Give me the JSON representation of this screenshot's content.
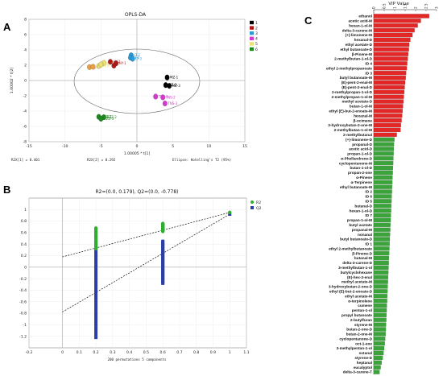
{
  "panels": {
    "A": "A",
    "B": "B",
    "C": "C"
  },
  "chart_data": [
    {
      "type": "scatter",
      "title": "OPLS-DA",
      "xlabel": "1.00005 * t[1]",
      "ylabel": "1.00002 * t[2]",
      "xlim": [
        -15,
        15
      ],
      "ylim": [
        -8,
        8
      ],
      "xticks": [
        "-15",
        "-10",
        "-5",
        "0",
        "5",
        "10",
        "15"
      ],
      "yticks": [
        "8",
        "6",
        "4",
        "2",
        "0",
        "-2",
        "-4",
        "-6",
        "-8"
      ],
      "footer": {
        "left": "R2X[1] = 0.401",
        "middle": "R2X[2] = 0.292",
        "right": "Ellipse: Hotelling's T2 (95%)"
      },
      "legend": [
        {
          "name": "1",
          "color": "#000000"
        },
        {
          "name": "2",
          "color": "#b01818"
        },
        {
          "name": "3",
          "color": "#2a9ad8"
        },
        {
          "name": "4",
          "color": "#d43ad0"
        },
        {
          "name": "5",
          "color": "#e8e070"
        },
        {
          "name": "6",
          "color": "#1d8a1d"
        }
      ],
      "groups": [
        {
          "color": "#e8e070",
          "points": [
            {
              "x": -5.3,
              "y": 1.9,
              "label": "HY-3"
            },
            {
              "x": -4.6,
              "y": 2.3,
              "label": "HY-1"
            },
            {
              "x": -5.0,
              "y": 2.1,
              "label": "HY-3"
            }
          ]
        },
        {
          "color": "#e8a040",
          "points": [
            {
              "x": -6.6,
              "y": 1.75,
              "label": "HJ-1"
            },
            {
              "x": -6.1,
              "y": 1.8,
              "label": ""
            }
          ]
        },
        {
          "color": "#b01818",
          "points": [
            {
              "x": -3.7,
              "y": 2.45,
              "label": "HY-2"
            },
            {
              "x": -2.9,
              "y": 2.25,
              "label": "HY-1"
            },
            {
              "x": -3.2,
              "y": 1.95,
              "label": ""
            }
          ]
        },
        {
          "color": "#2a9ad8",
          "points": [
            {
              "x": -0.8,
              "y": 3.3,
              "label": "LT-2"
            },
            {
              "x": -0.9,
              "y": 3.0,
              "label": "LT-1"
            },
            {
              "x": -0.6,
              "y": 2.85,
              "label": "LT-3"
            }
          ]
        },
        {
          "color": "#000000",
          "points": [
            {
              "x": 4.2,
              "y": 0.4,
              "label": "MZ-1"
            },
            {
              "x": 4.0,
              "y": -0.6,
              "label": "MZ-2"
            },
            {
              "x": 4.5,
              "y": -0.7,
              "label": "MZ-3"
            }
          ]
        },
        {
          "color": "#d43ad0",
          "points": [
            {
              "x": 2.6,
              "y": -2.1,
              "label": "TNS-1"
            },
            {
              "x": 3.6,
              "y": -2.2,
              "label": "TNS-2"
            },
            {
              "x": 3.9,
              "y": -3.0,
              "label": "TNS-3"
            }
          ]
        },
        {
          "color": "#1d8a1d",
          "points": [
            {
              "x": -5.3,
              "y": -4.75,
              "label": "HZZ-1"
            },
            {
              "x": -4.6,
              "y": -4.8,
              "label": "HZZ-2"
            },
            {
              "x": -5.0,
              "y": -5.0,
              "label": "HZZ-3"
            }
          ]
        }
      ]
    },
    {
      "type": "scatter",
      "title": "R2=(0.0, 0.179), Q2=(0.0, -0.778)",
      "xlabel": "200 permutations 5 components",
      "xlim": [
        -0.2,
        1.1
      ],
      "ylim": [
        -1.4,
        1.2
      ],
      "xticks": [
        "-0.2",
        "0",
        "0.1",
        "0.2",
        "0.3",
        "0.4",
        "0.5",
        "0.6",
        "0.7",
        "0.8",
        "0.9",
        "1",
        "1.1"
      ],
      "yticks": [
        "1",
        "0.8",
        "0.6",
        "0.4",
        "0.2",
        "0",
        "-0.2",
        "-0.4",
        "-0.6",
        "-0.8",
        "-1",
        "-1.2"
      ],
      "legend": [
        {
          "name": "R2",
          "color": "#2fae2f"
        },
        {
          "name": "Q2",
          "color": "#2b3ea8"
        }
      ],
      "R2": {
        "x_perm_low": 0.2,
        "range_low": [
          0.32,
          0.68
        ],
        "x_perm_mid": 0.6,
        "range_mid": [
          0.62,
          0.76
        ],
        "x_orig": 1.0,
        "y_orig": 0.95
      },
      "Q2": {
        "x_perm_low": 0.2,
        "range_low": [
          -1.22,
          0.48
        ],
        "x_perm_mid": 0.6,
        "range_mid": [
          -0.28,
          0.45
        ],
        "x_orig": 1.0,
        "y_orig": 0.92
      },
      "R2_line": {
        "x": [
          0,
          1
        ],
        "y": [
          0.179,
          0.95
        ]
      },
      "Q2_line": {
        "x": [
          0,
          1
        ],
        "y": [
          -0.778,
          0.92
        ]
      }
    },
    {
      "type": "bar",
      "orientation": "horizontal",
      "title": "VIP Value",
      "xticks": [
        "0",
        "0.5",
        "1",
        "1.5",
        "2",
        "2.5",
        "3"
      ],
      "xlim": [
        0,
        3
      ],
      "colors": {
        "high": "#e32626",
        "low": "#3aa43a"
      },
      "categories": [
        "ethanol",
        "acetic acid-M",
        "hexan-1-ol-M",
        "delta-3-carene-M",
        "(+)-limonene-M",
        "hexanal-D",
        "ethyl acetate-D",
        "ethyl butanoate-D",
        "β-Pinene-M",
        "2-methylbutan-1-ol-D",
        "ID 4",
        "ethyl 2-methylpropanoate",
        "ID 3",
        "butyl butanoate-M",
        "(E)-pent-2-enal-M",
        "(E)-pent-2-enal-D",
        "2-methylpropan-1-ol-D",
        "2-methylpropan-1-ol-M",
        "methyl acetate-D",
        "butan-1-ol-M",
        "ethyl (E)-but-2-enoate-M",
        "hexanal-M",
        "β-ocimene",
        "3-hydroxybutan-2-one-M",
        "2-methylbutan-1-ol-M",
        "2-methylbutanal",
        "(+)-limonene-D",
        "propanal-D",
        "acetic acid-D",
        "propan-1-ol-D",
        "α-Phellandrene-D",
        "cyclopentanone-M",
        "butan-1-ol-D",
        "propan-2-one",
        "α-Pinene",
        "α-Terpinene",
        "ethyl butanoate-M",
        "ID 2",
        "ID 6",
        "ID 5",
        "butanal-D",
        "hexan-1-ol-D",
        "ID 7",
        "propan-1-ol-M",
        "butyl acetate",
        "propanal-M",
        "nonanal",
        "butyl butanoate-D",
        "ID 1",
        "ethyl 2-methylbutanoate",
        "β-Pinene-D",
        "butanal-M",
        "delta-3-carene-D",
        "3-methylbutan-1-ol",
        "butylcyclohexane",
        "(E)-hex-2-enal",
        "methyl acetate-M",
        "3-hydroxybutan-2-one-D",
        "ethyl (E)-but-2-enoate-D",
        "ethyl acetate-M",
        "α-terpinolene",
        "cumene",
        "pentan-1-ol",
        "propyl butanoate",
        "2-butylfuran",
        "styrene-M",
        "butan-2-one-D",
        "butan-2-one-M",
        "cyclopentanone-D",
        "oct-1-ene",
        "3-methylpentan-1-ol",
        "octanal",
        "styrene-D",
        "heptanal",
        "eucalyptol",
        "delta-3-carene-T"
      ],
      "values": [
        2.65,
        2.25,
        2.1,
        1.95,
        1.85,
        1.75,
        1.7,
        1.68,
        1.65,
        1.63,
        1.6,
        1.58,
        1.55,
        1.53,
        1.5,
        1.48,
        1.46,
        1.44,
        1.42,
        1.4,
        1.38,
        1.36,
        1.33,
        1.3,
        1.28,
        1.1,
        0.99,
        0.97,
        0.96,
        0.95,
        0.94,
        0.93,
        0.92,
        0.91,
        0.9,
        0.89,
        0.88,
        0.87,
        0.86,
        0.85,
        0.84,
        0.83,
        0.82,
        0.81,
        0.8,
        0.79,
        0.78,
        0.77,
        0.76,
        0.75,
        0.74,
        0.73,
        0.72,
        0.71,
        0.7,
        0.69,
        0.68,
        0.67,
        0.66,
        0.65,
        0.64,
        0.63,
        0.62,
        0.61,
        0.6,
        0.59,
        0.58,
        0.57,
        0.55,
        0.53,
        0.5,
        0.47,
        0.43,
        0.38,
        0.33,
        0.28
      ],
      "threshold_index": 25
    }
  ]
}
